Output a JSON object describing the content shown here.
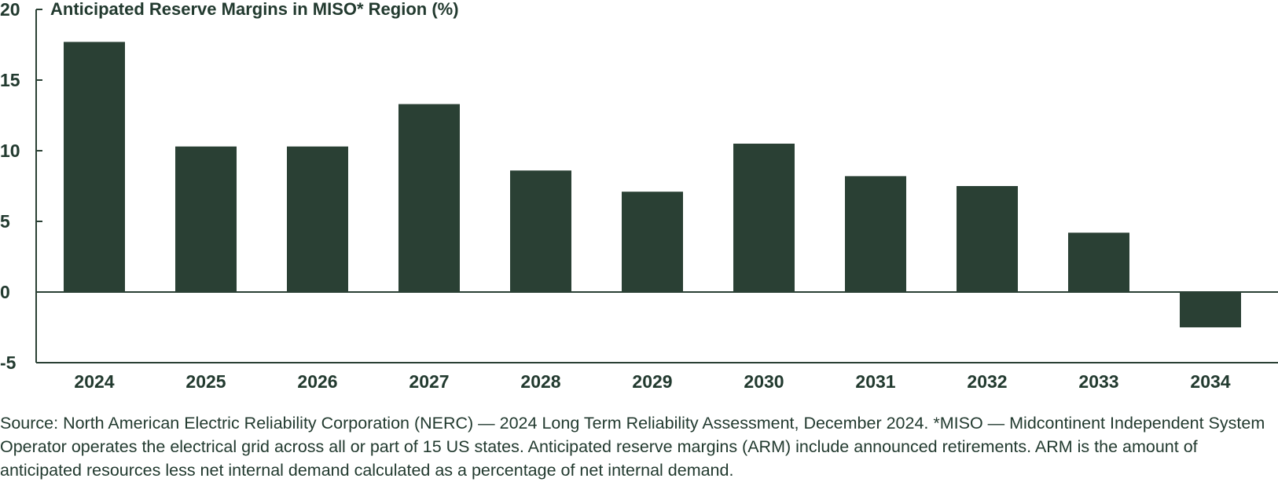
{
  "chart_data": {
    "type": "bar",
    "title": "Anticipated Reserve Margins in MISO* Region (%)",
    "categories": [
      "2024",
      "2025",
      "2026",
      "2027",
      "2028",
      "2029",
      "2030",
      "2031",
      "2032",
      "2033",
      "2034"
    ],
    "values": [
      17.7,
      10.3,
      10.3,
      13.3,
      8.6,
      7.1,
      10.5,
      8.2,
      7.5,
      4.2,
      -2.5
    ],
    "ylim": [
      -5,
      20
    ],
    "yticks": [
      "20",
      "15",
      "10",
      "5",
      "0",
      "-5"
    ],
    "xlabel": "",
    "ylabel": "",
    "grid": false,
    "bar_color": "#2a4034",
    "axis_color": "#2a4034",
    "text_color": "#223a2f"
  },
  "footnote": "Source: North American Electric Reliability Corporation (NERC) — 2024 Long Term Reliability Assessment, December 2024. *MISO — Midcontinent Independent System Operator operates the electrical grid across all or part of 15 US states. Anticipated reserve margins (ARM) include announced retirements. ARM is the amount of anticipated resources less net internal demand calculated as a percentage of net internal demand."
}
